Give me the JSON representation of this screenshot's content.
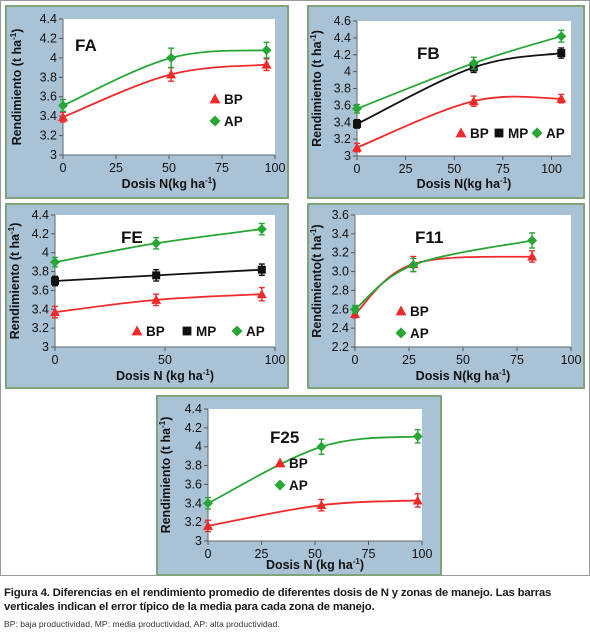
{
  "figure": {
    "caption": "Figura 4. Diferencias en el rendimiento promedio de diferentes dosis de N y zonas de manejo. Las barras verticales indican el error típico de la media para cada zona de manejo.",
    "note": "BP: baja productividad, MP: media productividad, AP: alta productividad."
  },
  "colors": {
    "BP": "#ee2a2a",
    "MP": "#111111",
    "AP": "#27a636",
    "panel_bg": "#aac2d6",
    "panel_border": "#7fa37a"
  },
  "chart_data": [
    {
      "type": "line",
      "title": "FA",
      "xlabel": "Dosis N(kg ha",
      "xlabel_sup": "-1",
      "xlabel_end": ")",
      "ylabel": "Rendimiento (t ha",
      "ylabel_sup": "-1",
      "ylabel_end": ")",
      "xlim": [
        0,
        100
      ],
      "ylim": [
        3,
        4.4
      ],
      "xticks": [
        0,
        25,
        50,
        75,
        100
      ],
      "yticks": [
        "3",
        "3.2",
        "3.4",
        "3.6",
        "3.8",
        "4",
        "4.2",
        "4.4"
      ],
      "ytick_values": [
        3,
        3.2,
        3.4,
        3.6,
        3.8,
        4,
        4.2,
        4.4
      ],
      "legend_position": "right",
      "legend_layout": "vertical",
      "series": [
        {
          "name": "BP",
          "marker": "triangle",
          "x": [
            0,
            51,
            96
          ],
          "y": [
            3.39,
            3.83,
            3.93
          ],
          "err": [
            0.05,
            0.07,
            0.06
          ]
        },
        {
          "name": "AP",
          "marker": "diamond",
          "x": [
            0,
            51,
            96
          ],
          "y": [
            3.51,
            4.0,
            4.08
          ],
          "err": [
            0.06,
            0.1,
            0.08
          ]
        }
      ]
    },
    {
      "type": "line",
      "title": "FB",
      "xlabel": "Dosis N(kg ha",
      "xlabel_sup": "-1",
      "xlabel_end": ")",
      "ylabel": "Rendimiento (t ha",
      "ylabel_sup": "-1",
      "ylabel_end": ")",
      "xlim": [
        0,
        110
      ],
      "ylim": [
        3,
        4.6
      ],
      "xticks": [
        0,
        25,
        50,
        75,
        100
      ],
      "yticks": [
        "3",
        "3.2",
        "3.4",
        "3.6",
        "3.8",
        "4",
        "4.2",
        "4.4",
        "4.6"
      ],
      "ytick_values": [
        3,
        3.2,
        3.4,
        3.6,
        3.8,
        4,
        4.2,
        4.4,
        4.6
      ],
      "legend_position": "bottom-right",
      "legend_layout": "horizontal",
      "series": [
        {
          "name": "BP",
          "marker": "triangle",
          "x": [
            0,
            60,
            105
          ],
          "y": [
            3.1,
            3.65,
            3.68
          ],
          "err": [
            0.05,
            0.06,
            0.05
          ]
        },
        {
          "name": "MP",
          "marker": "square",
          "x": [
            0,
            60,
            105
          ],
          "y": [
            3.38,
            4.05,
            4.22
          ],
          "err": [
            0.05,
            0.06,
            0.06
          ]
        },
        {
          "name": "AP",
          "marker": "diamond",
          "x": [
            0,
            60,
            105
          ],
          "y": [
            3.56,
            4.1,
            4.42
          ],
          "err": [
            0.05,
            0.07,
            0.07
          ]
        }
      ]
    },
    {
      "type": "line",
      "title": "FE",
      "xlabel": "Dosis N (kg ha",
      "xlabel_sup": "-1",
      "xlabel_end": ")",
      "ylabel": "Rendimiento (t ha",
      "ylabel_sup": "-1",
      "ylabel_end": ")",
      "xlim": [
        0,
        100
      ],
      "ylim": [
        3,
        4.4
      ],
      "xticks": [
        0,
        50,
        100
      ],
      "yticks": [
        "3",
        "3.2",
        "3.4",
        "3.6",
        "3.8",
        "4",
        "4.2",
        "4.4"
      ],
      "ytick_values": [
        3,
        3.2,
        3.4,
        3.6,
        3.8,
        4,
        4.2,
        4.4
      ],
      "legend_position": "bottom",
      "legend_layout": "horizontal",
      "series": [
        {
          "name": "BP",
          "marker": "triangle",
          "x": [
            0,
            46,
            94
          ],
          "y": [
            3.37,
            3.5,
            3.56
          ],
          "err": [
            0.06,
            0.06,
            0.07
          ]
        },
        {
          "name": "MP",
          "marker": "square",
          "x": [
            0,
            46,
            94
          ],
          "y": [
            3.7,
            3.76,
            3.82
          ],
          "err": [
            0.05,
            0.06,
            0.06
          ]
        },
        {
          "name": "AP",
          "marker": "diamond",
          "x": [
            0,
            46,
            94
          ],
          "y": [
            3.9,
            4.1,
            4.25
          ],
          "err": [
            0.05,
            0.06,
            0.06
          ]
        }
      ]
    },
    {
      "type": "line",
      "title": "F11",
      "xlabel": "Dosis N(kg ha",
      "xlabel_sup": "-1",
      "xlabel_end": ")",
      "ylabel": "Rendimiento(t ha",
      "ylabel_sup": "-1",
      "ylabel_end": ")",
      "xlim": [
        0,
        100
      ],
      "ylim": [
        2.2,
        3.6
      ],
      "xticks": [
        0,
        25,
        50,
        75,
        100
      ],
      "yticks": [
        "2.2",
        "2.4",
        "2.6",
        "2.8",
        "3.0",
        "3.2",
        "3.4",
        "3.6"
      ],
      "ytick_values": [
        2.2,
        2.4,
        2.6,
        2.8,
        3.0,
        3.2,
        3.4,
        3.6
      ],
      "legend_position": "left",
      "legend_layout": "vertical",
      "series": [
        {
          "name": "BP",
          "marker": "triangle",
          "x": [
            0,
            27,
            82
          ],
          "y": [
            2.55,
            3.08,
            3.16
          ],
          "err": [
            0.04,
            0.08,
            0.06
          ]
        },
        {
          "name": "AP",
          "marker": "diamond",
          "x": [
            0,
            27,
            82
          ],
          "y": [
            2.6,
            3.07,
            3.33
          ],
          "err": [
            0.04,
            0.07,
            0.08
          ]
        }
      ]
    },
    {
      "type": "line",
      "title": "F25",
      "xlabel": "Dosis N (kg ha",
      "xlabel_sup": "-1",
      "xlabel_end": ")",
      "ylabel": "Rendimiento (t ha",
      "ylabel_sup": "-1",
      "ylabel_end": ")",
      "xlim": [
        0,
        100
      ],
      "ylim": [
        3,
        4.4
      ],
      "xticks": [
        0,
        25,
        50,
        75,
        100
      ],
      "yticks": [
        "3",
        "3.2",
        "3.4",
        "3.6",
        "3.8",
        "4",
        "4.2",
        "4.4"
      ],
      "ytick_values": [
        3,
        3.2,
        3.4,
        3.6,
        3.8,
        4,
        4.2,
        4.4
      ],
      "legend_position": "right",
      "legend_layout": "vertical",
      "series": [
        {
          "name": "BP",
          "marker": "triangle",
          "x": [
            0,
            53,
            98
          ],
          "y": [
            3.16,
            3.38,
            3.43
          ],
          "err": [
            0.06,
            0.06,
            0.07
          ]
        },
        {
          "name": "AP",
          "marker": "diamond",
          "x": [
            0,
            53,
            98
          ],
          "y": [
            3.4,
            4.0,
            4.11
          ],
          "err": [
            0.06,
            0.08,
            0.07
          ]
        }
      ]
    }
  ]
}
